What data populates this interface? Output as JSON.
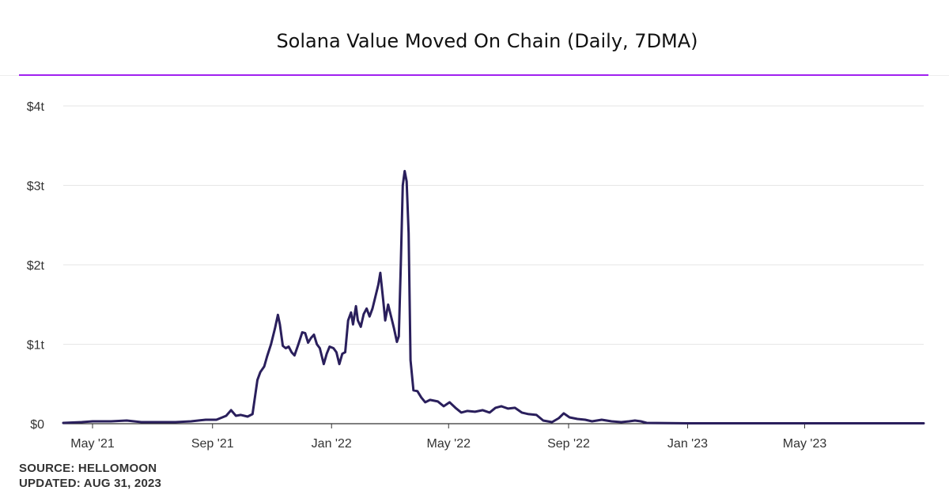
{
  "title": "Solana Value Moved On Chain (Daily, 7DMA)",
  "footer": {
    "source": "SOURCE: HELLOMOON",
    "updated": "UPDATED: AUG 31, 2023"
  },
  "colors": {
    "line": "#2a1f5c",
    "accent_rule": "#a020f0",
    "grid": "#e6e6e6",
    "axis": "#333333",
    "tick_text": "#333333"
  },
  "chart_data": {
    "type": "line",
    "title": "Solana Value Moved On Chain (Daily, 7DMA)",
    "xlabel": "",
    "ylabel": "",
    "unit": "trillion USD",
    "x_range": [
      "2021-04-01",
      "2023-08-31"
    ],
    "ylim": [
      0,
      4
    ],
    "grid": true,
    "y_ticks": [
      {
        "value": 0,
        "label": "$0"
      },
      {
        "value": 1,
        "label": "$1t"
      },
      {
        "value": 2,
        "label": "$2t"
      },
      {
        "value": 3,
        "label": "$3t"
      },
      {
        "value": 4,
        "label": "$4t"
      }
    ],
    "x_ticks": [
      {
        "date": "2021-05-01",
        "label": "May '21"
      },
      {
        "date": "2021-09-01",
        "label": "Sep '21"
      },
      {
        "date": "2022-01-01",
        "label": "Jan '22"
      },
      {
        "date": "2022-05-01",
        "label": "May '22"
      },
      {
        "date": "2022-09-01",
        "label": "Sep '22"
      },
      {
        "date": "2023-01-01",
        "label": "Jan '23"
      },
      {
        "date": "2023-05-01",
        "label": "May '23"
      }
    ],
    "series": [
      {
        "points": [
          [
            "2021-04-01",
            0.01
          ],
          [
            "2021-04-20",
            0.02
          ],
          [
            "2021-05-01",
            0.03
          ],
          [
            "2021-05-20",
            0.03
          ],
          [
            "2021-06-05",
            0.04
          ],
          [
            "2021-06-20",
            0.02
          ],
          [
            "2021-07-10",
            0.02
          ],
          [
            "2021-07-25",
            0.02
          ],
          [
            "2021-08-10",
            0.03
          ],
          [
            "2021-08-25",
            0.05
          ],
          [
            "2021-09-05",
            0.05
          ],
          [
            "2021-09-15",
            0.1
          ],
          [
            "2021-09-20",
            0.17
          ],
          [
            "2021-09-25",
            0.1
          ],
          [
            "2021-09-30",
            0.11
          ],
          [
            "2021-10-07",
            0.09
          ],
          [
            "2021-10-12",
            0.12
          ],
          [
            "2021-10-17",
            0.55
          ],
          [
            "2021-10-20",
            0.65
          ],
          [
            "2021-10-24",
            0.72
          ],
          [
            "2021-10-27",
            0.85
          ],
          [
            "2021-10-31",
            1.0
          ],
          [
            "2021-11-04",
            1.2
          ],
          [
            "2021-11-07",
            1.37
          ],
          [
            "2021-11-09",
            1.25
          ],
          [
            "2021-11-12",
            0.98
          ],
          [
            "2021-11-15",
            0.95
          ],
          [
            "2021-11-18",
            0.97
          ],
          [
            "2021-11-21",
            0.9
          ],
          [
            "2021-11-24",
            0.86
          ],
          [
            "2021-11-28",
            1.0
          ],
          [
            "2021-12-02",
            1.15
          ],
          [
            "2021-12-05",
            1.14
          ],
          [
            "2021-12-08",
            1.02
          ],
          [
            "2021-12-11",
            1.08
          ],
          [
            "2021-12-14",
            1.12
          ],
          [
            "2021-12-17",
            1.0
          ],
          [
            "2021-12-20",
            0.95
          ],
          [
            "2021-12-24",
            0.75
          ],
          [
            "2021-12-27",
            0.88
          ],
          [
            "2021-12-30",
            0.97
          ],
          [
            "2022-01-03",
            0.95
          ],
          [
            "2022-01-06",
            0.9
          ],
          [
            "2022-01-09",
            0.75
          ],
          [
            "2022-01-12",
            0.88
          ],
          [
            "2022-01-15",
            0.9
          ],
          [
            "2022-01-18",
            1.3
          ],
          [
            "2022-01-21",
            1.4
          ],
          [
            "2022-01-23",
            1.25
          ],
          [
            "2022-01-26",
            1.48
          ],
          [
            "2022-01-28",
            1.3
          ],
          [
            "2022-01-31",
            1.22
          ],
          [
            "2022-02-03",
            1.38
          ],
          [
            "2022-02-06",
            1.45
          ],
          [
            "2022-02-09",
            1.35
          ],
          [
            "2022-02-12",
            1.45
          ],
          [
            "2022-02-15",
            1.6
          ],
          [
            "2022-02-18",
            1.75
          ],
          [
            "2022-02-20",
            1.9
          ],
          [
            "2022-02-23",
            1.55
          ],
          [
            "2022-02-25",
            1.3
          ],
          [
            "2022-02-28",
            1.5
          ],
          [
            "2022-03-03",
            1.35
          ],
          [
            "2022-03-06",
            1.2
          ],
          [
            "2022-03-09",
            1.03
          ],
          [
            "2022-03-11",
            1.1
          ],
          [
            "2022-03-13",
            2.0
          ],
          [
            "2022-03-15",
            3.0
          ],
          [
            "2022-03-17",
            3.18
          ],
          [
            "2022-03-19",
            3.05
          ],
          [
            "2022-03-21",
            2.4
          ],
          [
            "2022-03-23",
            0.8
          ],
          [
            "2022-03-26",
            0.42
          ],
          [
            "2022-03-30",
            0.41
          ],
          [
            "2022-04-03",
            0.33
          ],
          [
            "2022-04-07",
            0.27
          ],
          [
            "2022-04-12",
            0.3
          ],
          [
            "2022-04-20",
            0.28
          ],
          [
            "2022-04-26",
            0.22
          ],
          [
            "2022-05-02",
            0.27
          ],
          [
            "2022-05-08",
            0.2
          ],
          [
            "2022-05-14",
            0.14
          ],
          [
            "2022-05-20",
            0.16
          ],
          [
            "2022-05-28",
            0.15
          ],
          [
            "2022-06-05",
            0.17
          ],
          [
            "2022-06-12",
            0.14
          ],
          [
            "2022-06-18",
            0.2
          ],
          [
            "2022-06-24",
            0.22
          ],
          [
            "2022-07-01",
            0.19
          ],
          [
            "2022-07-08",
            0.2
          ],
          [
            "2022-07-15",
            0.14
          ],
          [
            "2022-07-22",
            0.12
          ],
          [
            "2022-07-30",
            0.11
          ],
          [
            "2022-08-06",
            0.04
          ],
          [
            "2022-08-15",
            0.02
          ],
          [
            "2022-08-22",
            0.07
          ],
          [
            "2022-08-27",
            0.13
          ],
          [
            "2022-09-02",
            0.08
          ],
          [
            "2022-09-10",
            0.06
          ],
          [
            "2022-09-18",
            0.05
          ],
          [
            "2022-09-25",
            0.03
          ],
          [
            "2022-10-05",
            0.05
          ],
          [
            "2022-10-15",
            0.03
          ],
          [
            "2022-10-25",
            0.02
          ],
          [
            "2022-11-02",
            0.03
          ],
          [
            "2022-11-08",
            0.04
          ],
          [
            "2022-11-14",
            0.03
          ],
          [
            "2022-11-20",
            0.01
          ],
          [
            "2023-01-01",
            0.005
          ],
          [
            "2023-03-01",
            0.005
          ],
          [
            "2023-05-01",
            0.005
          ],
          [
            "2023-07-01",
            0.005
          ],
          [
            "2023-08-31",
            0.005
          ]
        ]
      }
    ]
  }
}
